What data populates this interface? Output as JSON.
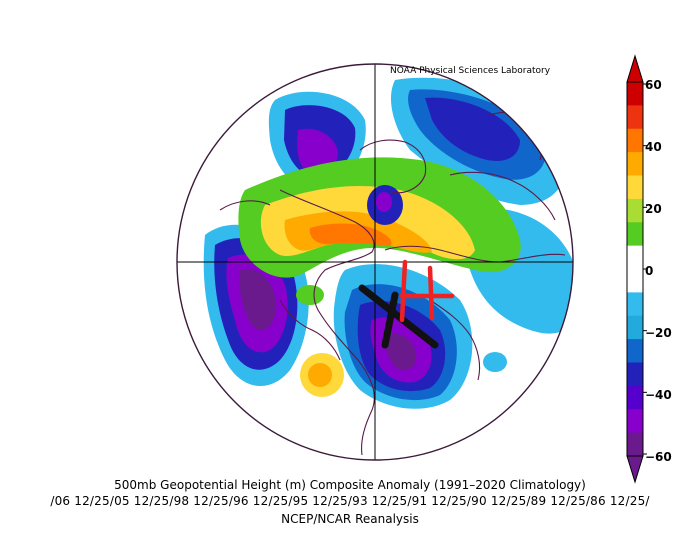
{
  "credit": "NOAA Physical Sciences Laboratory",
  "title": "500mb Geopotential Height (m) Composite Anomaly (1991–2020 Climatology)",
  "dates": "/06 12/25/05 12/25/98 12/25/96 12/25/95 12/25/93 12/25/91 12/25/90 12/25/89 12/25/86 12/25/",
  "source": "NCEP/NCAR Reanalysis",
  "colorbar": {
    "ticks": [
      "60",
      "40",
      "20",
      "0",
      "−20",
      "−40",
      "−60"
    ],
    "colors": [
      "#cc0000",
      "#ee3311",
      "#ff7700",
      "#ffaa00",
      "#ffd83a",
      "#aadd33",
      "#55cc22",
      "#ffffff",
      "#ffffff",
      "#33bbee",
      "#22aadd",
      "#1166cc",
      "#2222bb",
      "#5500cc",
      "#8800cc",
      "#6a1a8c"
    ]
  },
  "annotations": {
    "high_marker": "H"
  },
  "map": {
    "projection": "polar-stereographic",
    "field": "500mb height anomaly",
    "units": "m"
  }
}
